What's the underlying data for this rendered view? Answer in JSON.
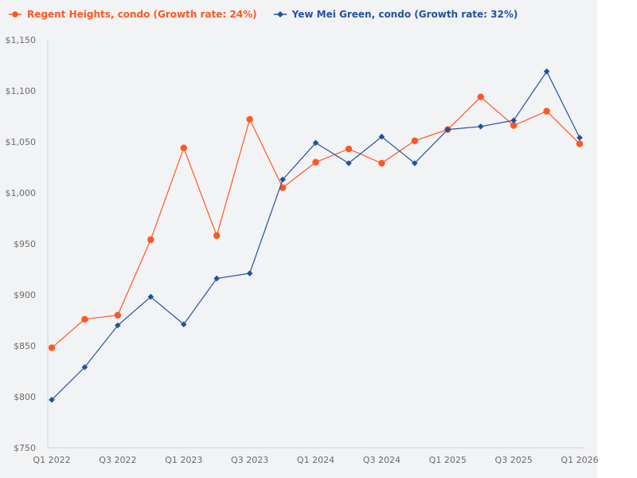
{
  "legend": {
    "items": [
      {
        "label": "Regent Heights, condo (Growth rate: 24%)",
        "color": "#ff5722",
        "marker": "circle"
      },
      {
        "label": "Yew Mei Green, condo (Growth rate: 32%)",
        "color": "#2152a3",
        "marker": "diamond"
      }
    ]
  },
  "colors": {
    "panel_background": "#f2f3f5",
    "axis_line": "#c9d3e6",
    "tick_text": "#6b6b6b"
  },
  "chart_data": {
    "type": "line",
    "title": "",
    "xlabel": "",
    "ylabel": "",
    "x": [
      "Q1 2022",
      "Q2 2022",
      "Q3 2022",
      "Q4 2022",
      "Q1 2023",
      "Q2 2023",
      "Q3 2023",
      "Q4 2023",
      "Q1 2024",
      "Q2 2024",
      "Q3 2024",
      "Q4 2024",
      "Q1 2025",
      "Q2 2025",
      "Q3 2025",
      "Q4 2025",
      "Q1 2026"
    ],
    "x_tick_labels": [
      "Q1 2022",
      "Q3 2022",
      "Q1 2023",
      "Q3 2023",
      "Q1 2024",
      "Q3 2024",
      "Q1 2025",
      "Q3 2025",
      "Q1 2026"
    ],
    "y_tick_labels": [
      "$750",
      "$800",
      "$850",
      "$900",
      "$950",
      "$1,000",
      "$1,050",
      "$1,100",
      "$1,150"
    ],
    "y_ticks": [
      750,
      800,
      850,
      900,
      950,
      1000,
      1050,
      1100,
      1150
    ],
    "ylim": [
      750,
      1150
    ],
    "grid": false,
    "legend_position": "top-left",
    "series": [
      {
        "name": "Regent Heights, condo (Growth rate: 24%)",
        "color": "#ff5722",
        "marker": "circle",
        "values": [
          848,
          876,
          880,
          954,
          1044,
          958,
          1072,
          1005,
          1030,
          1043,
          1029,
          1051,
          1062,
          1094,
          1066,
          1080,
          1048
        ]
      },
      {
        "name": "Yew Mei Green, condo (Growth rate: 32%)",
        "color": "#2152a3",
        "marker": "diamond",
        "values": [
          797,
          829,
          870,
          898,
          871,
          916,
          921,
          1013,
          1049,
          1029,
          1055,
          1029,
          1062,
          1065,
          1071,
          1119,
          1054
        ]
      }
    ]
  }
}
